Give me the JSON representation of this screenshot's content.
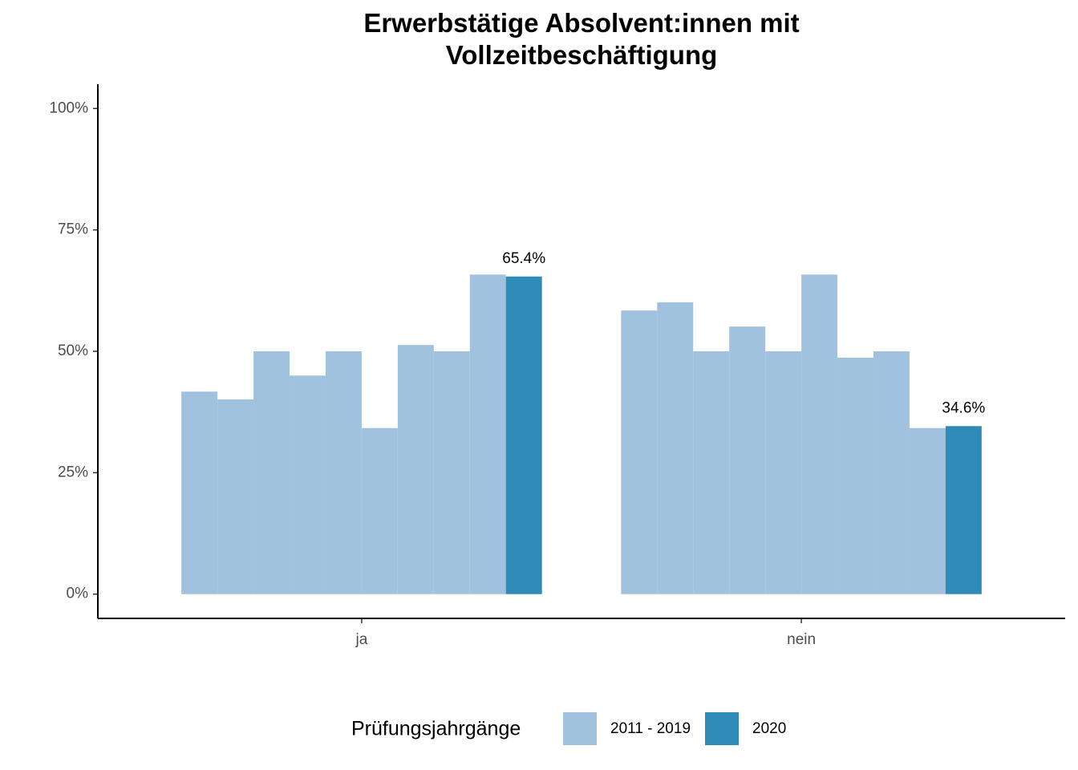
{
  "chart_data": {
    "type": "bar",
    "title": "Erwerbstätige Absolvent:innen mit Vollzeitbeschäftigung",
    "categories": [
      "ja",
      "nein"
    ],
    "series": [
      {
        "name": "2011 - 2019",
        "color": "#a1c2de",
        "values": [
          [
            41.7,
            40.1,
            50,
            45,
            50,
            34.2,
            51.3,
            50,
            65.8
          ],
          [
            58.4,
            60.1,
            50,
            55.1,
            50,
            65.8,
            48.7,
            50,
            34.2
          ]
        ]
      },
      {
        "name": "2020",
        "color": "#2e8bb7",
        "values": [
          65.4,
          34.6
        ],
        "value_labels": [
          "65.4%",
          "34.6%"
        ]
      }
    ],
    "ylim": [
      -5,
      105
    ],
    "yticks": [
      {
        "value": 0,
        "label": "0%"
      },
      {
        "value": 25,
        "label": "25%"
      },
      {
        "value": 50,
        "label": "50%"
      },
      {
        "value": 75,
        "label": "75%"
      },
      {
        "value": 100,
        "label": "100%"
      }
    ],
    "legend_title": "Prüfungsjahrgänge",
    "legend_position": "bottom",
    "grid": false
  }
}
